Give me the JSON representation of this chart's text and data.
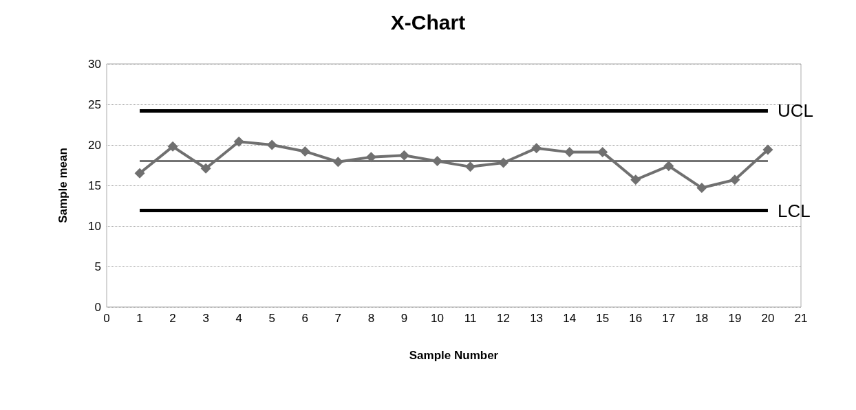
{
  "chart_data": {
    "type": "line",
    "title": "X-Chart",
    "xlabel": "Sample Number",
    "ylabel": "Sample mean",
    "x": [
      1,
      2,
      3,
      4,
      5,
      6,
      7,
      8,
      9,
      10,
      11,
      12,
      13,
      14,
      15,
      16,
      17,
      18,
      19,
      20
    ],
    "series": [
      {
        "color": "#707070",
        "values": [
          16.5,
          19.8,
          17.1,
          20.4,
          20.0,
          19.2,
          17.9,
          18.5,
          18.7,
          18.0,
          17.3,
          17.8,
          19.6,
          19.1,
          19.1,
          15.7,
          17.4,
          14.7,
          15.7,
          19.4
        ]
      }
    ],
    "xlim": [
      0,
      21
    ],
    "xticks": [
      0,
      1,
      2,
      3,
      4,
      5,
      6,
      7,
      8,
      9,
      10,
      11,
      12,
      13,
      14,
      15,
      16,
      17,
      18,
      19,
      20,
      21
    ],
    "ylim": [
      0,
      30
    ],
    "yticks": [
      0,
      5,
      10,
      15,
      20,
      25,
      30
    ],
    "ref_lines": [
      {
        "axis": "y",
        "value": 24.2,
        "label": "UCL",
        "color": "#000000"
      },
      {
        "axis": "y",
        "value": 18.0,
        "color": "#555555"
      },
      {
        "axis": "y",
        "value": 11.9,
        "label": "LCL",
        "color": "#000000"
      }
    ],
    "grid": "y",
    "marker": "diamond",
    "line_style": "solid"
  }
}
